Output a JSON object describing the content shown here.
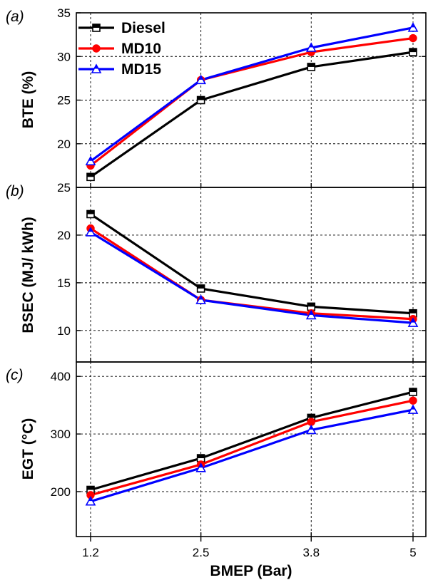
{
  "chart_data": [
    {
      "type": "line",
      "panel_tag": "(a)",
      "ylabel": "BTE (%)",
      "xlabel": "",
      "x": [
        1.2,
        2.5,
        3.8,
        5
      ],
      "xlim": [
        1.2,
        5
      ],
      "ylim": [
        15,
        35
      ],
      "yticks": [
        20,
        25,
        30,
        35
      ],
      "grid": true,
      "legend": "top-left",
      "series": [
        {
          "name": "Diesel",
          "color": "#000000",
          "marker": "square",
          "values": [
            16.2,
            25.0,
            28.8,
            30.5
          ]
        },
        {
          "name": "MD10",
          "color": "#ff0000",
          "marker": "circle",
          "values": [
            17.5,
            27.3,
            30.5,
            32.1
          ]
        },
        {
          "name": "MD15",
          "color": "#0000ff",
          "marker": "triangle",
          "values": [
            18.0,
            27.3,
            31.0,
            33.3
          ]
        }
      ]
    },
    {
      "type": "line",
      "panel_tag": "(b)",
      "ylabel": "BSEC (MJ/ kWh)",
      "xlabel": "",
      "x": [
        1.2,
        2.5,
        3.8,
        5
      ],
      "xlim": [
        1.2,
        5
      ],
      "ylim": [
        6.7,
        25
      ],
      "yticks": [
        10,
        15,
        20,
        25
      ],
      "grid": true,
      "series": [
        {
          "name": "Diesel",
          "color": "#000000",
          "marker": "square",
          "values": [
            22.2,
            14.4,
            12.5,
            11.8
          ]
        },
        {
          "name": "MD10",
          "color": "#ff0000",
          "marker": "circle",
          "values": [
            20.7,
            13.2,
            11.8,
            11.2
          ]
        },
        {
          "name": "MD15",
          "color": "#0000ff",
          "marker": "triangle",
          "values": [
            20.3,
            13.2,
            11.6,
            10.8
          ]
        }
      ]
    },
    {
      "type": "line",
      "panel_tag": "(c)",
      "ylabel": "EGT (°C)",
      "xlabel": "BMEP (Bar)",
      "x": [
        1.2,
        2.5,
        3.8,
        5
      ],
      "xlabels": [
        "1.2",
        "2.5",
        "3.8",
        "5"
      ],
      "xlim": [
        1.2,
        5
      ],
      "ylim": [
        122,
        425
      ],
      "yticks": [
        200,
        300,
        400
      ],
      "grid": true,
      "series": [
        {
          "name": "Diesel",
          "color": "#000000",
          "marker": "square",
          "values": [
            203,
            258,
            328,
            373
          ]
        },
        {
          "name": "MD10",
          "color": "#ff0000",
          "marker": "circle",
          "values": [
            194,
            247,
            321,
            358
          ]
        },
        {
          "name": "MD15",
          "color": "#0000ff",
          "marker": "triangle",
          "values": [
            183,
            241,
            307,
            342
          ]
        }
      ]
    }
  ]
}
